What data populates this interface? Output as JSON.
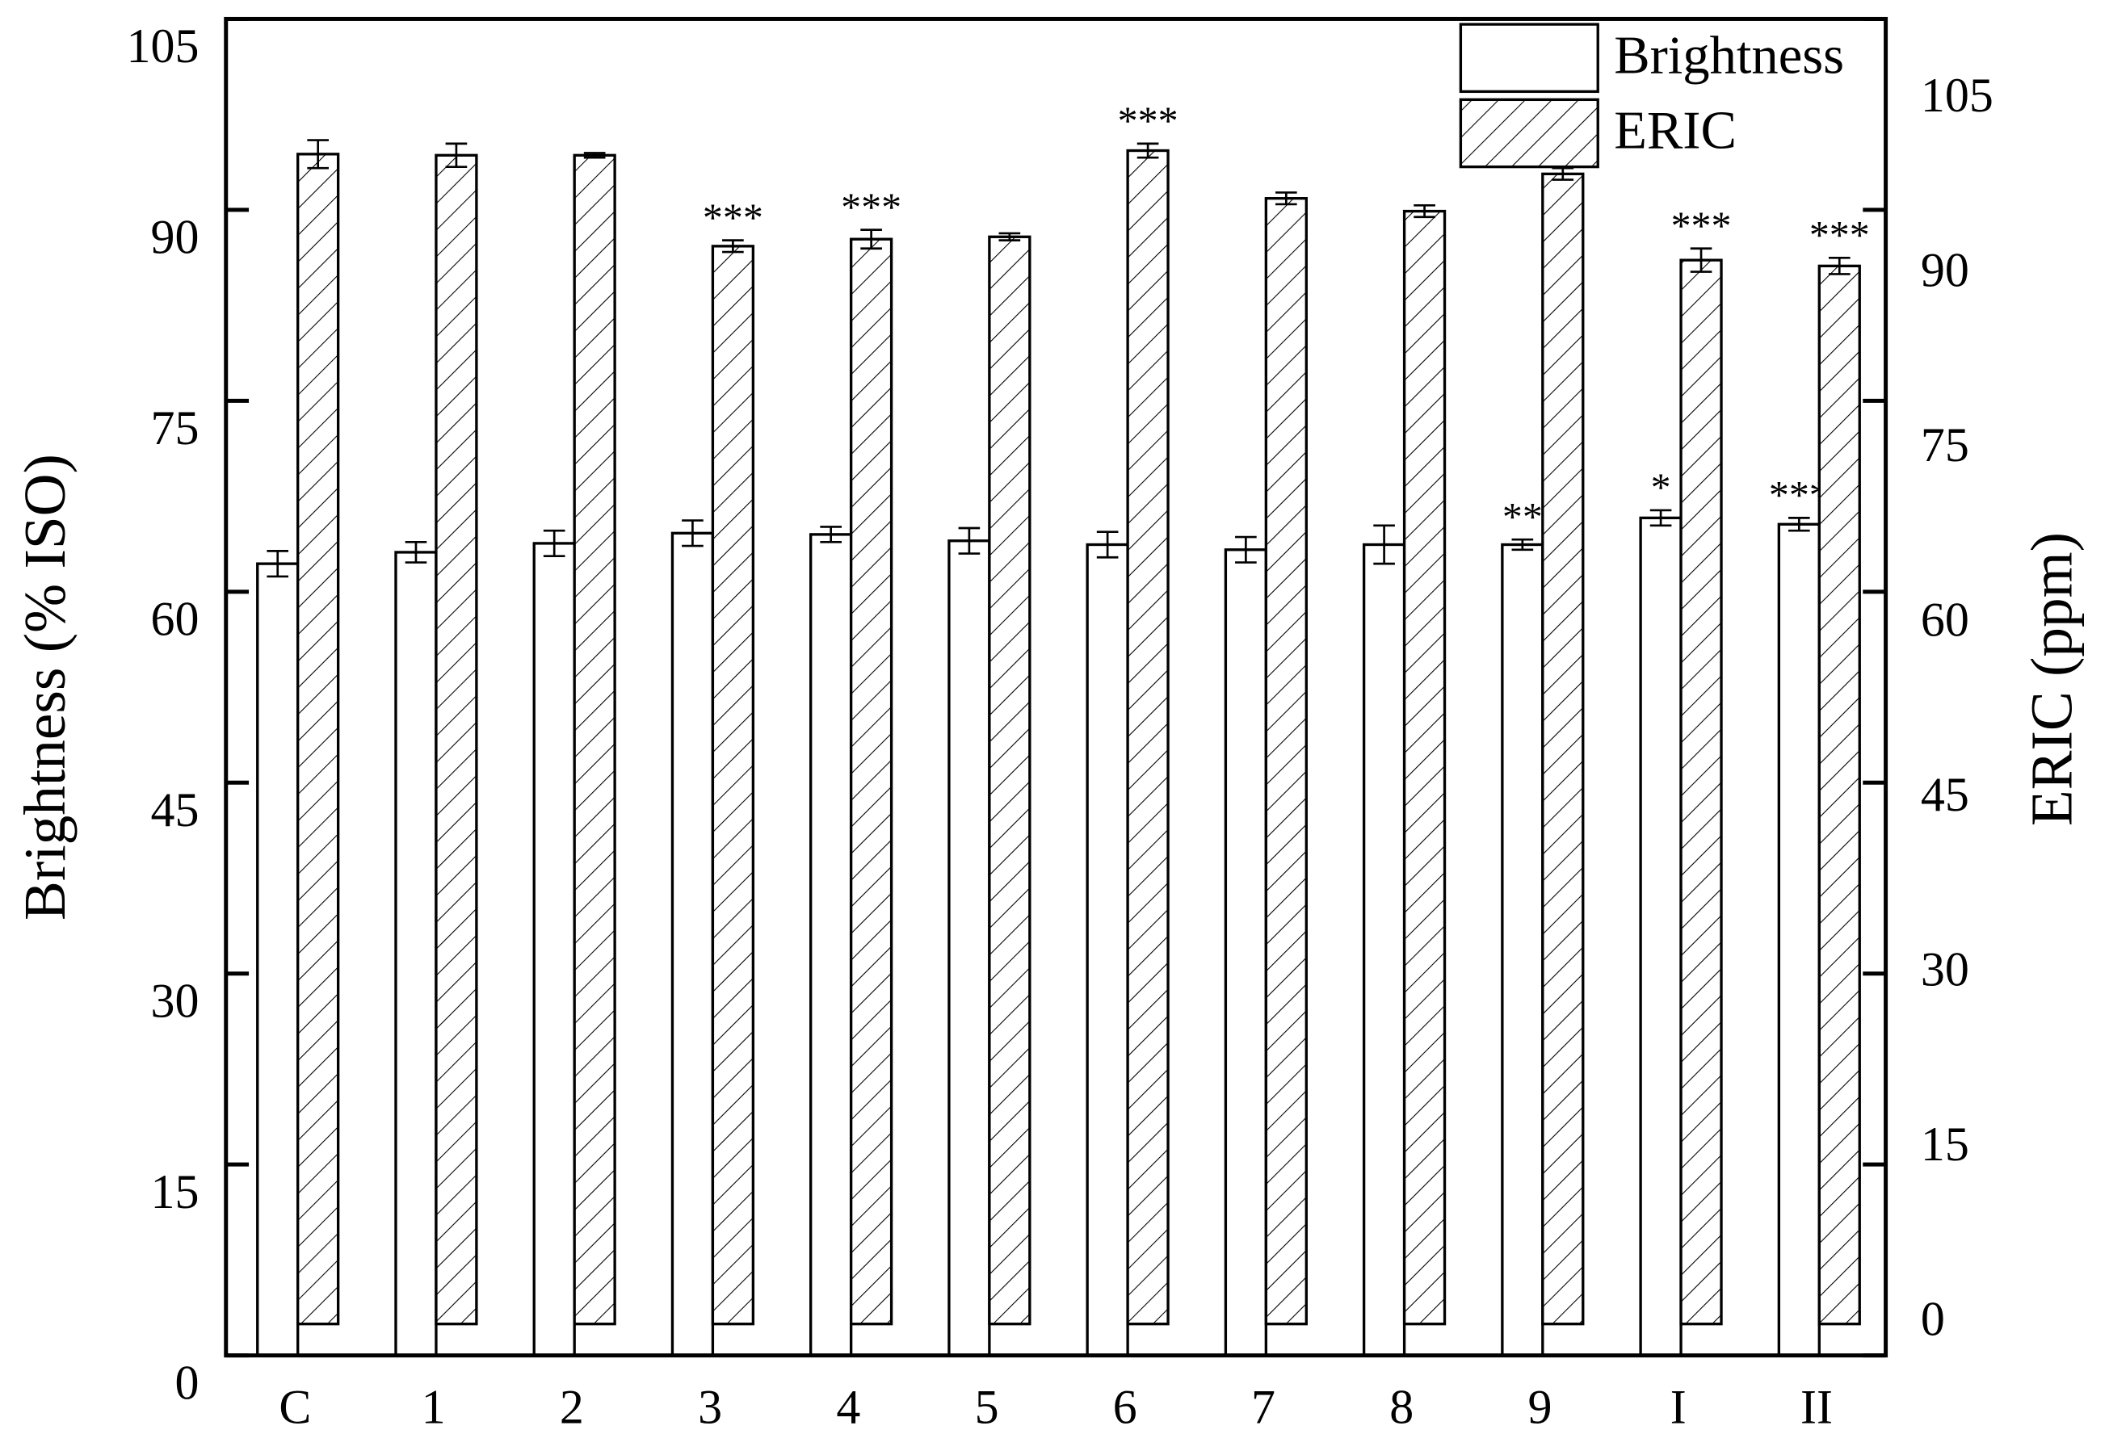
{
  "chart_data": {
    "type": "bar",
    "categories": [
      "C",
      "1",
      "2",
      "3",
      "4",
      "5",
      "6",
      "7",
      "8",
      "9",
      "I",
      "II"
    ],
    "ylabel": "Brightness (% ISO)",
    "y2label": "ERIC (ppm)",
    "ylim": [
      0,
      105
    ],
    "yticks": [
      0,
      15,
      30,
      45,
      60,
      75,
      90,
      105
    ],
    "y2lim": [
      -2.7,
      112
    ],
    "y2ticks": [
      0,
      15,
      30,
      45,
      60,
      75,
      90,
      105
    ],
    "legend": "upper right",
    "series": [
      {
        "name": "Brightness",
        "color": "#ffffff",
        "pattern": "none",
        "values": [
          62.2,
          63.1,
          63.8,
          64.6,
          64.5,
          64.0,
          63.7,
          63.3,
          63.7,
          63.7,
          65.8,
          65.3
        ],
        "errors": [
          1.0,
          0.8,
          1.0,
          1.0,
          0.6,
          1.0,
          1.0,
          1.0,
          1.5,
          0.4,
          0.6,
          0.5
        ],
        "annotations": [
          null,
          null,
          null,
          null,
          null,
          null,
          null,
          null,
          null,
          "**",
          "*",
          "***"
        ]
      },
      {
        "name": "ERIC",
        "axis": "y2",
        "color": "#ffffff",
        "pattern": "hatch",
        "values": [
          100.4,
          100.3,
          100.3,
          92.5,
          93.1,
          93.3,
          100.7,
          96.6,
          95.5,
          98.7,
          91.3,
          90.8
        ],
        "errors": [
          1.2,
          1.0,
          0.2,
          0.5,
          0.8,
          0.3,
          0.6,
          0.5,
          0.5,
          0.5,
          1.0,
          0.7
        ],
        "annotations": [
          null,
          null,
          null,
          "***",
          "***",
          null,
          "***",
          null,
          null,
          null,
          "***",
          "***"
        ]
      }
    ]
  }
}
